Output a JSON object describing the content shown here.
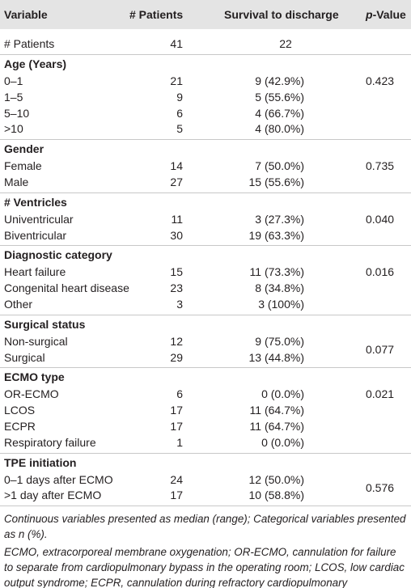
{
  "header": {
    "variable": "Variable",
    "patients": "# Patients",
    "survival": "Survival to discharge",
    "p_italic": "p",
    "p_rest": "-Value"
  },
  "total": {
    "label": "# Patients",
    "patients": "41",
    "survival": "22"
  },
  "groups": [
    {
      "title": "Age (Years)",
      "p": "0.423",
      "rows": [
        [
          "0–1",
          "21",
          "9 (42.9%)"
        ],
        [
          "1–5",
          "9",
          "5 (55.6%)"
        ],
        [
          "5–10",
          "6",
          "4 (66.7%)"
        ],
        [
          ">10",
          "5",
          "4 (80.0%)"
        ]
      ]
    },
    {
      "title": "Gender",
      "p": "0.735",
      "rows": [
        [
          "Female",
          "14",
          "7 (50.0%)"
        ],
        [
          "Male",
          "27",
          "15 (55.6%)"
        ]
      ]
    },
    {
      "title": "# Ventricles",
      "p": "0.040",
      "rows": [
        [
          "Univentricular",
          "11",
          "3 (27.3%)"
        ],
        [
          "Biventricular",
          "30",
          "19 (63.3%)"
        ]
      ]
    },
    {
      "title": "Diagnostic category",
      "p": "0.016",
      "rows": [
        [
          "Heart failure",
          "15",
          "11 (73.3%)"
        ],
        [
          "Congenital heart disease",
          "23",
          "8 (34.8%)"
        ],
        [
          "Other",
          "3",
          "3 (100%)"
        ]
      ]
    },
    {
      "title": "Surgical status",
      "p": "0.077",
      "rows": [
        [
          "Non-surgical",
          "12",
          "9 (75.0%)"
        ],
        [
          "Surgical",
          "29",
          "13 (44.8%)"
        ]
      ]
    },
    {
      "title": "ECMO type",
      "p": "0.021",
      "rows": [
        [
          "OR-ECMO",
          "6",
          "0 (0.0%)"
        ],
        [
          "LCOS",
          "17",
          "11 (64.7%)"
        ],
        [
          "ECPR",
          "17",
          "11 (64.7%)"
        ],
        [
          "Respiratory failure",
          "1",
          "0 (0.0%)"
        ]
      ]
    },
    {
      "title": "TPE initiation",
      "p": "0.576",
      "rows": [
        [
          "0–1 days after ECMO",
          "24",
          "12 (50.0%)"
        ],
        [
          ">1 day after ECMO",
          "17",
          "10 (58.8%)"
        ]
      ]
    }
  ],
  "footnotes": [
    "Continuous variables presented as median (range); Categorical variables presented as n (%).",
    "ECMO, extracorporeal membrane oxygenation; OR-ECMO, cannulation for failure to separate from cardiopulmonary bypass in the operating room; LCOS, low cardiac output syndrome; ECPR, cannulation during refractory cardiopulmonary resuscitation; CICU, cardiac intensive care unit; TPE, therapeutic plasma exchange."
  ]
}
